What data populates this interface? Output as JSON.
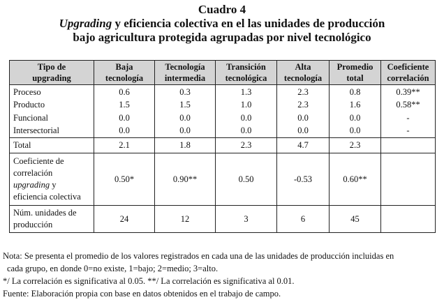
{
  "title": {
    "line1": "Cuadro 4",
    "line2_italic": "Upgrading",
    "line2_rest": " y eficiencia colectiva en el las unidades de producción",
    "line3": "bajo agricultura protegida agrupadas por nivel tecnológico"
  },
  "table": {
    "headers": [
      [
        "Tipo de",
        "upgrading"
      ],
      [
        "Baja",
        "tecnología"
      ],
      [
        "Tecnología",
        "intermedia"
      ],
      [
        "Transición",
        "tecnológica"
      ],
      [
        "Alta",
        "tecnología"
      ],
      [
        "Promedio",
        "total"
      ],
      [
        "Coeficiente",
        "correlación"
      ]
    ],
    "rows": [
      {
        "label": "Proceso",
        "values": [
          "0.6",
          "0.3",
          "1.3",
          "2.3",
          "0.8",
          "0.39**"
        ]
      },
      {
        "label": "Producto",
        "values": [
          "1.5",
          "1.5",
          "1.0",
          "2.3",
          "1.6",
          "0.58**"
        ]
      },
      {
        "label": "Funcional",
        "values": [
          "0.0",
          "0.0",
          "0.0",
          "0.0",
          "0.0",
          "-"
        ]
      },
      {
        "label": "Intersectorial",
        "values": [
          "0.0",
          "0.0",
          "0.0",
          "0.0",
          "0.0",
          "-"
        ]
      }
    ],
    "total": {
      "label": "Total",
      "values": [
        "2.1",
        "1.8",
        "2.3",
        "4.7",
        "2.3",
        ""
      ]
    },
    "correlation": {
      "label_line1": "Coeficiente de",
      "label_line2": "correlación",
      "label_line3_italic": "upgrading",
      "label_line3_rest": " y",
      "label_line4": "eficiencia colectiva",
      "values": [
        "0.50*",
        "0.90**",
        "0.50",
        "-0.53",
        "0.60**",
        ""
      ]
    },
    "units": {
      "label_line1": "Núm. unidades de",
      "label_line2": "producción",
      "values": [
        "24",
        "12",
        "3",
        "6",
        "45",
        ""
      ]
    }
  },
  "notes": {
    "line1": "Nota: Se presenta el promedio de los valores registrados en cada una de las unidades de producción incluidas en",
    "line2": "cada grupo, en donde 0=no existe, 1=bajo; 2=medio; 3=alto.",
    "line3": "*/ La correlación es significativa al 0.05. **/ La correlación es significativa al 0.01.",
    "line4": "Fuente: Elaboración propia con base en datos obtenidos en el trabajo de campo."
  }
}
